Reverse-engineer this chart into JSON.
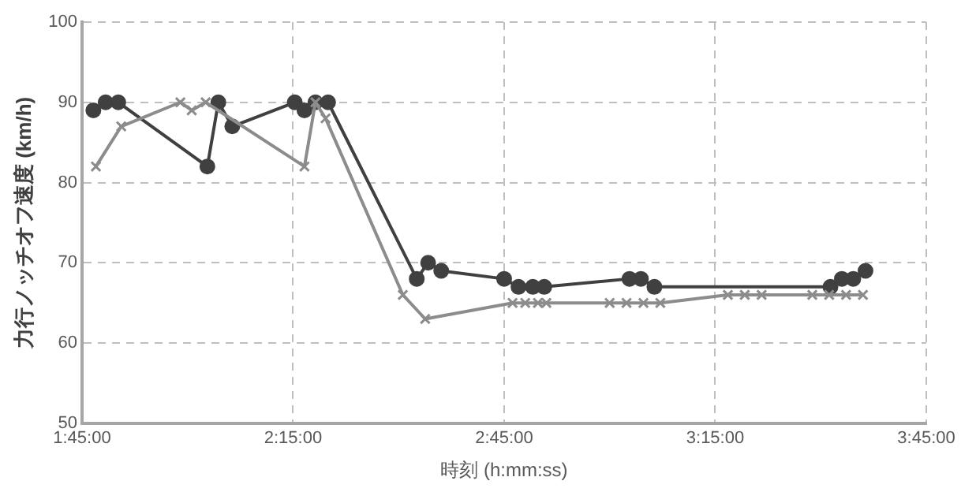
{
  "chart_data": {
    "type": "line",
    "xlabel": "時刻 (h:mm:ss)",
    "ylabel": "力行ノッチオフ速度 (km/h)",
    "xlim": [
      1.75,
      3.75
    ],
    "xticks": [
      {
        "value": 1.75,
        "label": "1:45:00"
      },
      {
        "value": 2.25,
        "label": "2:15:00"
      },
      {
        "value": 2.75,
        "label": "2:45:00"
      },
      {
        "value": 3.25,
        "label": "3:15:00"
      },
      {
        "value": 3.75,
        "label": "3:45:00"
      }
    ],
    "ylim": [
      50,
      100
    ],
    "yticks": [
      50,
      60,
      70,
      80,
      90,
      100
    ],
    "grid": true,
    "legend": false,
    "series": [
      {
        "color": "#404040",
        "marker": "circle",
        "x": [
          1.777,
          1.806,
          1.836,
          2.047,
          2.073,
          2.106,
          2.254,
          2.277,
          2.303,
          2.333,
          2.543,
          2.57,
          2.601,
          2.75,
          2.784,
          2.818,
          2.845,
          3.047,
          3.074,
          3.106,
          3.523,
          3.55,
          3.577,
          3.606
        ],
        "values": [
          89,
          90,
          90,
          82,
          90,
          87,
          90,
          89,
          90,
          90,
          68,
          70,
          69,
          68,
          67,
          67,
          67,
          68,
          68,
          67,
          67,
          68,
          68,
          69
        ]
      },
      {
        "color": "#8c8c8c",
        "marker": "cross",
        "x": [
          1.783,
          1.843,
          1.983,
          2.01,
          2.043,
          2.277,
          2.303,
          2.327,
          2.51,
          2.563,
          2.77,
          2.8,
          2.83,
          2.85,
          3.0,
          3.04,
          3.08,
          3.12,
          3.28,
          3.32,
          3.36,
          3.48,
          3.52,
          3.56,
          3.6
        ],
        "values": [
          82,
          87,
          90,
          89,
          90,
          82,
          90,
          88,
          66,
          63,
          65,
          65,
          65,
          65,
          65,
          65,
          65,
          65,
          66,
          66,
          66,
          66,
          66,
          66,
          66
        ]
      }
    ]
  }
}
